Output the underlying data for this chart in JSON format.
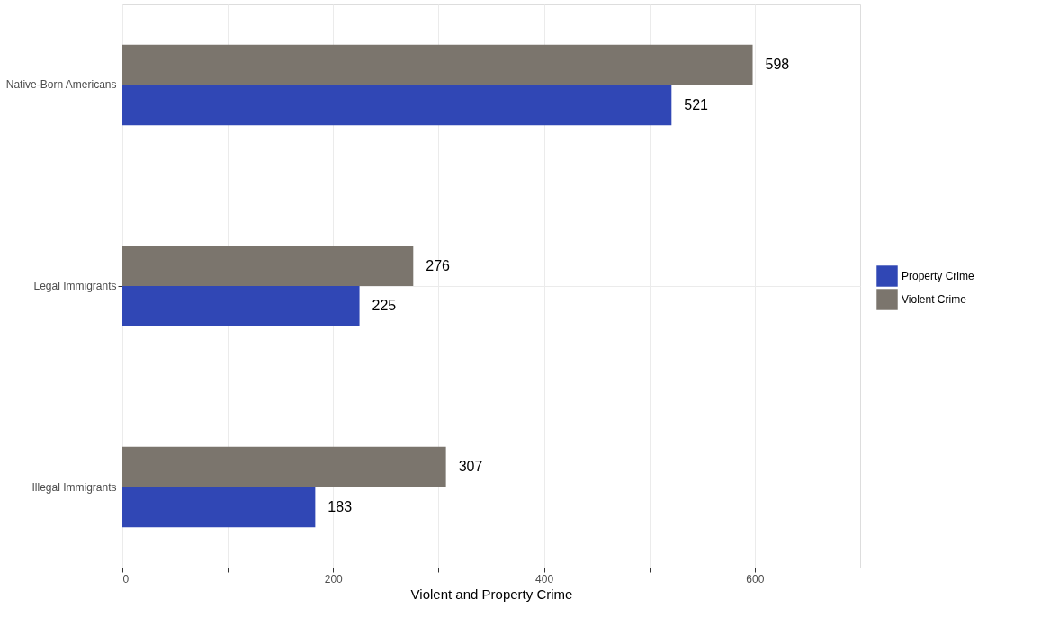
{
  "chart_data": {
    "type": "bar",
    "orientation": "horizontal",
    "xlabel": "Violent and Property Crime",
    "categories": [
      "Native-Born Americans",
      "Legal Immigrants",
      "Illegal Immigrants"
    ],
    "series": [
      {
        "name": "Property Crime",
        "color": "#3047b5",
        "values": [
          521,
          225,
          183
        ]
      },
      {
        "name": "Violent Crime",
        "color": "#7b756d",
        "values": [
          598,
          276,
          307
        ]
      }
    ],
    "xlim": [
      0,
      700
    ],
    "xticks": [
      0,
      {
        "value": 100,
        "label": null
      },
      200,
      {
        "value": 300,
        "label": null
      },
      400,
      {
        "value": 500,
        "label": null
      },
      600
    ],
    "grid": true,
    "legend": "right",
    "data_labels": true
  }
}
